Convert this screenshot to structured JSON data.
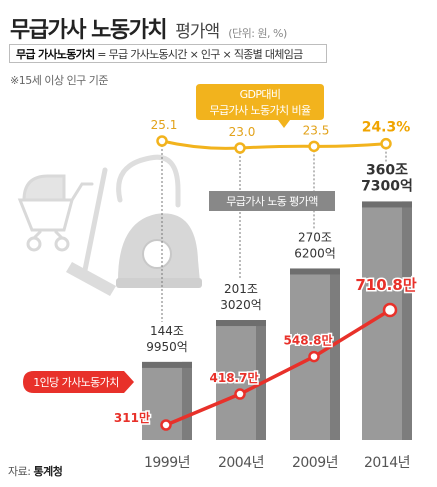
{
  "header": {
    "title": "무급가사 노동가치",
    "subtitle": "평가액",
    "unit": "(단위: 원, %)"
  },
  "formula": {
    "term": "무급 가사노동가치",
    "expression": " = 무급 가사노동시간 × 인구 × 직종별 대체임금"
  },
  "note": "※15세 이상 인구 기준",
  "source": {
    "label": "자료: ",
    "name": "통계청"
  },
  "colors": {
    "bar": "#9a9a9a",
    "bar_dark": "#7d7d7d",
    "gdp_line": "#f2b31d",
    "per_capita_line": "#e8312a",
    "label_box": "#888888"
  },
  "chart_data": {
    "type": "bar",
    "categories": [
      "1999년",
      "2004년",
      "2009년",
      "2014년"
    ],
    "series": [
      {
        "name": "무급가사 노동 평가액",
        "values": [
          144.995,
          201.302,
          270.62,
          360.73
        ],
        "labels": [
          [
            "144조",
            "9950억"
          ],
          [
            "201조",
            "3020억"
          ],
          [
            "270조",
            "6200억"
          ],
          [
            "360조",
            "7300억"
          ]
        ]
      },
      {
        "name": "GDP대비 무급가사 노동가치 비율",
        "values": [
          25.1,
          23.0,
          23.5,
          24.3
        ],
        "labels": [
          "25.1",
          "23.0",
          "23.5",
          "24.3%"
        ]
      },
      {
        "name": "1인당 가사노동가치",
        "values": [
          311,
          418.7,
          548.8,
          710.8
        ],
        "labels": [
          "311만",
          "418.7만",
          "548.8만",
          "710.8만"
        ]
      }
    ],
    "legend_labels": {
      "bars": "무급가사 노동 평가액",
      "gdp": [
        "GDP대비",
        "무급가사 노동가치 비율"
      ],
      "per_capita": "1인당 가사노동가치"
    }
  }
}
